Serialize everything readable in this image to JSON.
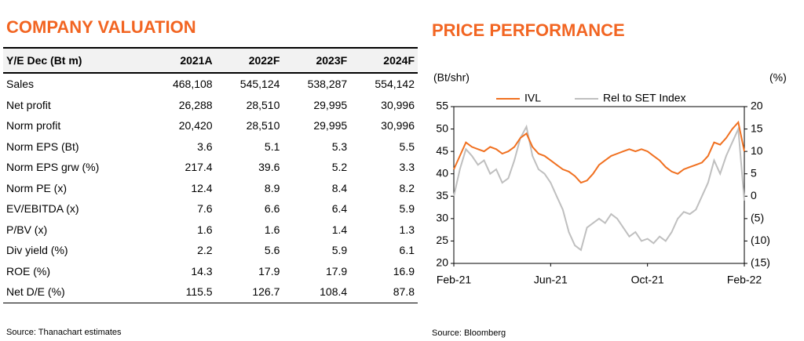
{
  "valuation": {
    "title": "COMPANY VALUATION",
    "header": [
      "Y/E Dec (Bt m)",
      "2021A",
      "2022F",
      "2023F",
      "2024F"
    ],
    "rows": [
      [
        "Sales",
        "468,108",
        "545,124",
        "538,287",
        "554,142"
      ],
      [
        "Net profit",
        "26,288",
        "28,510",
        "29,995",
        "30,996"
      ],
      [
        "Norm profit",
        "20,420",
        "28,510",
        "29,995",
        "30,996"
      ],
      [
        "Norm EPS (Bt)",
        "3.6",
        "5.1",
        "5.3",
        "5.5"
      ],
      [
        "Norm EPS grw (%)",
        "217.4",
        "39.6",
        "5.2",
        "3.3"
      ],
      [
        "Norm PE (x)",
        "12.4",
        "8.9",
        "8.4",
        "8.2"
      ],
      [
        "EV/EBITDA (x)",
        "7.6",
        "6.6",
        "6.4",
        "5.9"
      ],
      [
        "P/BV (x)",
        "1.6",
        "1.6",
        "1.4",
        "1.3"
      ],
      [
        "Div yield (%)",
        "2.2",
        "5.6",
        "5.9",
        "6.1"
      ],
      [
        "ROE (%)",
        "14.3",
        "17.9",
        "17.9",
        "16.9"
      ],
      [
        "Net D/E (%)",
        "115.5",
        "126.7",
        "108.4",
        "87.8"
      ]
    ],
    "source": "Source: Thanachart estimates"
  },
  "chart_data": {
    "type": "line",
    "title": "PRICE PERFORMANCE",
    "y_label": "(Bt/shr)",
    "y2_label": "(%)",
    "x": [
      0,
      0.25,
      0.5,
      0.75,
      1,
      1.25,
      1.5,
      1.75,
      2,
      2.25,
      2.5,
      2.75,
      3,
      3.25,
      3.5,
      3.75,
      4,
      4.25,
      4.5,
      4.75,
      5,
      5.25,
      5.5,
      5.75,
      6,
      6.25,
      6.5,
      6.75,
      7,
      7.25,
      7.5,
      7.75,
      8,
      8.25,
      8.5,
      8.75,
      9,
      9.25,
      9.5,
      9.75,
      10,
      10.25,
      10.5,
      10.75,
      11,
      11.25,
      11.5,
      11.75,
      12
    ],
    "xlim": [
      0,
      12
    ],
    "xticks": [
      {
        "value": 0,
        "label": "Feb-21"
      },
      {
        "value": 4,
        "label": "Jun-21"
      },
      {
        "value": 8,
        "label": "Oct-21"
      },
      {
        "value": 12,
        "label": "Feb-22"
      }
    ],
    "ylim": [
      20,
      55
    ],
    "yticks": [
      20,
      25,
      30,
      35,
      40,
      45,
      50,
      55
    ],
    "y2lim": [
      -15,
      20
    ],
    "y2ticks": [
      {
        "value": -15,
        "label": "(15)"
      },
      {
        "value": -10,
        "label": "(10)"
      },
      {
        "value": -5,
        "label": "(5)"
      },
      0,
      5,
      10,
      15,
      20
    ],
    "series": [
      {
        "name": "IVL",
        "color": "#f07020",
        "values": [
          41,
          44,
          47,
          46,
          45.5,
          45,
          46,
          45.5,
          44.5,
          45,
          46,
          48,
          49,
          46,
          44.5,
          44,
          43,
          42,
          41,
          40.5,
          39.5,
          38,
          38.5,
          40,
          42,
          43,
          44,
          44.5,
          45,
          45.5,
          45,
          45.5,
          45,
          44,
          43,
          41.5,
          40.5,
          40,
          41,
          41.5,
          42,
          42.5,
          44,
          47,
          46.5,
          48,
          50,
          51.5,
          45
        ]
      },
      {
        "name": "Rel to SET Index",
        "color": "#bfbfbf",
        "axis": "y2",
        "values": [
          0,
          6,
          10.5,
          9,
          7,
          8,
          5,
          6,
          3,
          4,
          8,
          13,
          15.5,
          9,
          6,
          5,
          3,
          0,
          -3,
          -8,
          -11,
          -12,
          -7,
          -6,
          -5,
          -6,
          -4,
          -5,
          -7,
          -9,
          -8,
          -10,
          -9.5,
          -10.5,
          -9,
          -10,
          -8,
          -5,
          -3.5,
          -4,
          -3,
          0,
          3,
          8,
          5,
          9,
          12,
          15,
          -1
        ]
      }
    ],
    "source": "Source: Bloomberg"
  }
}
